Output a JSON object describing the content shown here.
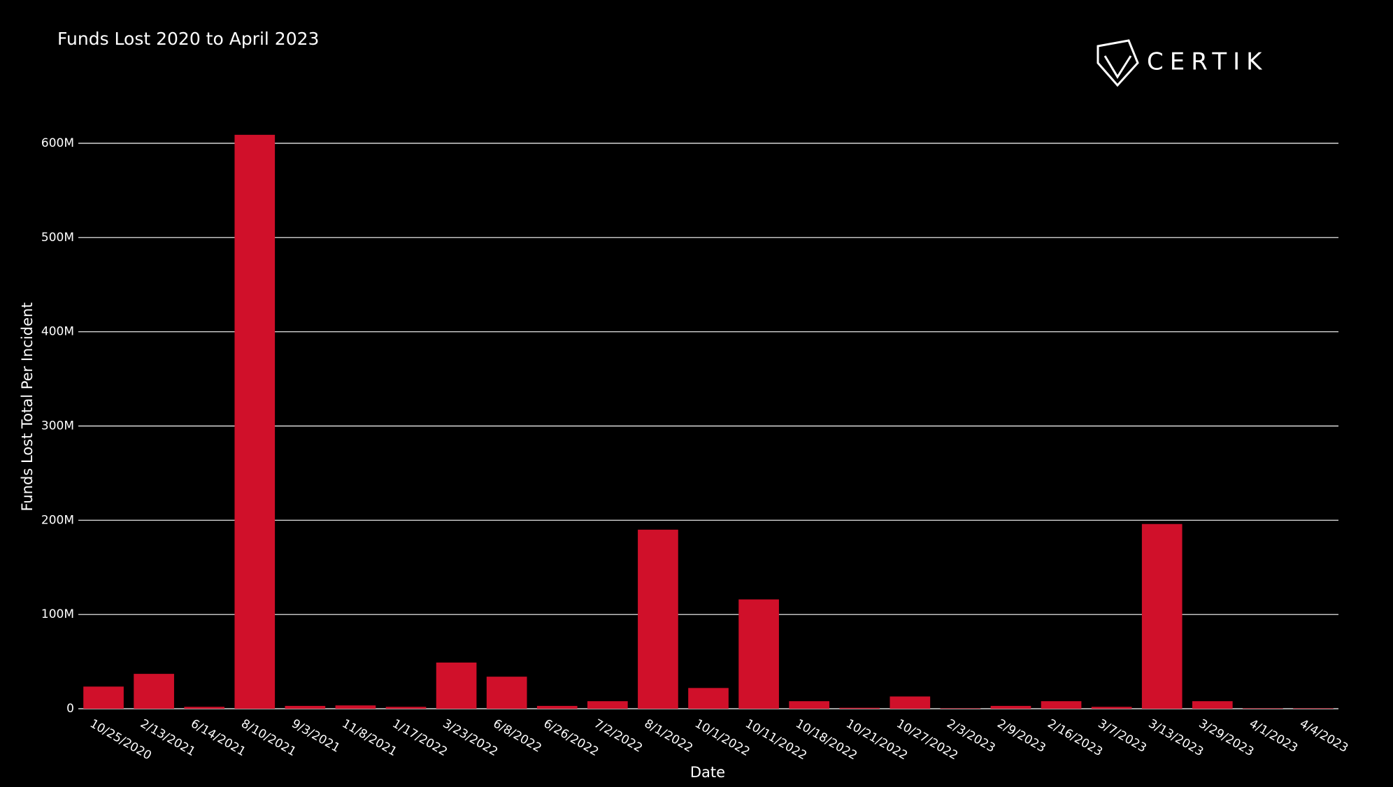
{
  "chart_data": {
    "type": "bar",
    "title": "Funds Lost 2020 to April 2023",
    "logo": "CERTIK",
    "x_label": "Date",
    "y_label": "Funds Lost Total Per Incident",
    "categories": [
      "10/25/2020",
      "2/13/2021",
      "6/14/2021",
      "8/10/2021",
      "9/3/2021",
      "11/8/2021",
      "1/17/2022",
      "3/23/2022",
      "6/8/2022",
      "6/26/2022",
      "7/2/2022",
      "8/1/2022",
      "10/1/2022",
      "10/11/2022",
      "10/18/2022",
      "10/21/2022",
      "10/27/2022",
      "2/3/2023",
      "2/9/2023",
      "2/16/2023",
      "3/7/2023",
      "3/13/2023",
      "3/29/2023",
      "4/1/2023",
      "4/4/2023"
    ],
    "values": [
      23500000,
      37000000,
      2000000,
      609000000,
      3000000,
      3500000,
      2000000,
      49000000,
      34000000,
      3000000,
      8000000,
      190000000,
      22000000,
      116000000,
      8000000,
      1000000,
      13000000,
      500000,
      3000000,
      8000000,
      2000000,
      196000000,
      8000000,
      500000,
      500000
    ],
    "color": "#d0102a",
    "ylim": [
      0,
      600000000
    ],
    "yticks": [
      0,
      {
        "value": 100000000,
        "label": "100M"
      },
      {
        "value": 200000000,
        "label": "200M"
      },
      {
        "value": 300000000,
        "label": "300M"
      },
      {
        "value": 400000000,
        "label": "400M"
      },
      {
        "value": 500000000,
        "label": "500M"
      },
      {
        "value": 600000000,
        "label": "600M"
      }
    ],
    "grid": true
  }
}
